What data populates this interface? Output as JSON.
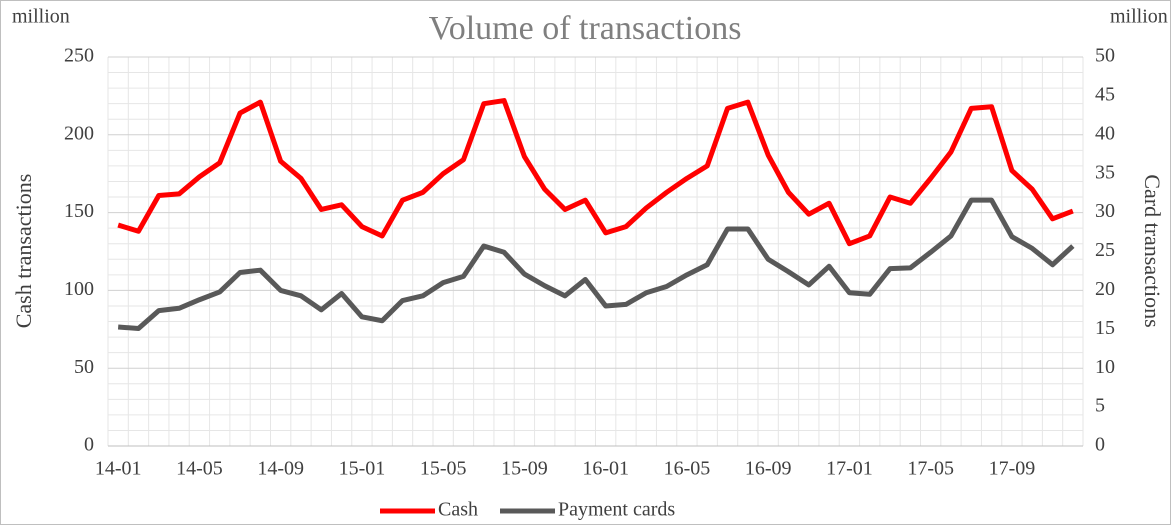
{
  "chart_data": {
    "type": "line",
    "title": "Volume of transactions",
    "y_unit": "million",
    "y2_unit": "million",
    "ylabel": "Cash transactions",
    "y2label": "Card transactions",
    "categories": [
      "14-01",
      null,
      null,
      null,
      "14-05",
      null,
      null,
      null,
      "14-09",
      null,
      null,
      null,
      "15-01",
      null,
      null,
      null,
      "15-05",
      null,
      null,
      null,
      "15-09",
      null,
      null,
      null,
      "16-01",
      null,
      null,
      null,
      "16-05",
      null,
      null,
      null,
      "16-09",
      null,
      null,
      null,
      "17-01",
      null,
      null,
      null,
      "17-05",
      null,
      null,
      null,
      "17-09",
      null,
      null,
      null
    ],
    "series": [
      {
        "name": "Cash",
        "color": "#ff0000",
        "axis": "y",
        "values": [
          142,
          138,
          161,
          162,
          173,
          182,
          214,
          221,
          183,
          172,
          152,
          155,
          141,
          135,
          158,
          163,
          175,
          184,
          220,
          222,
          186,
          165,
          152,
          158,
          137,
          141,
          153,
          163,
          172,
          180,
          217,
          221,
          187,
          163,
          149,
          156,
          130,
          135,
          160,
          156,
          172,
          189,
          217,
          218,
          177,
          165,
          146,
          151
        ]
      },
      {
        "name": "Payment cards",
        "color": "#595959",
        "axis": "y2",
        "values": [
          15.3,
          15.1,
          17.4,
          17.7,
          18.8,
          19.8,
          22.3,
          22.6,
          20.0,
          19.3,
          17.5,
          19.6,
          16.6,
          16.1,
          18.7,
          19.3,
          21.0,
          21.8,
          25.7,
          24.9,
          22.1,
          20.6,
          19.3,
          21.4,
          18.0,
          18.2,
          19.7,
          20.5,
          22.0,
          23.3,
          27.9,
          27.9,
          24.0,
          22.4,
          20.7,
          23.1,
          19.7,
          19.5,
          22.8,
          22.9,
          24.9,
          27.0,
          31.6,
          31.6,
          26.9,
          25.4,
          23.3,
          25.7
        ]
      }
    ],
    "ylim": [
      0,
      250
    ],
    "yticks": [
      0,
      50,
      100,
      150,
      200,
      250
    ],
    "y2lim": [
      0,
      50
    ],
    "y2ticks": [
      0,
      5,
      10,
      15,
      20,
      25,
      30,
      35,
      40,
      45,
      50
    ],
    "grid": true,
    "legend": "bottom"
  }
}
